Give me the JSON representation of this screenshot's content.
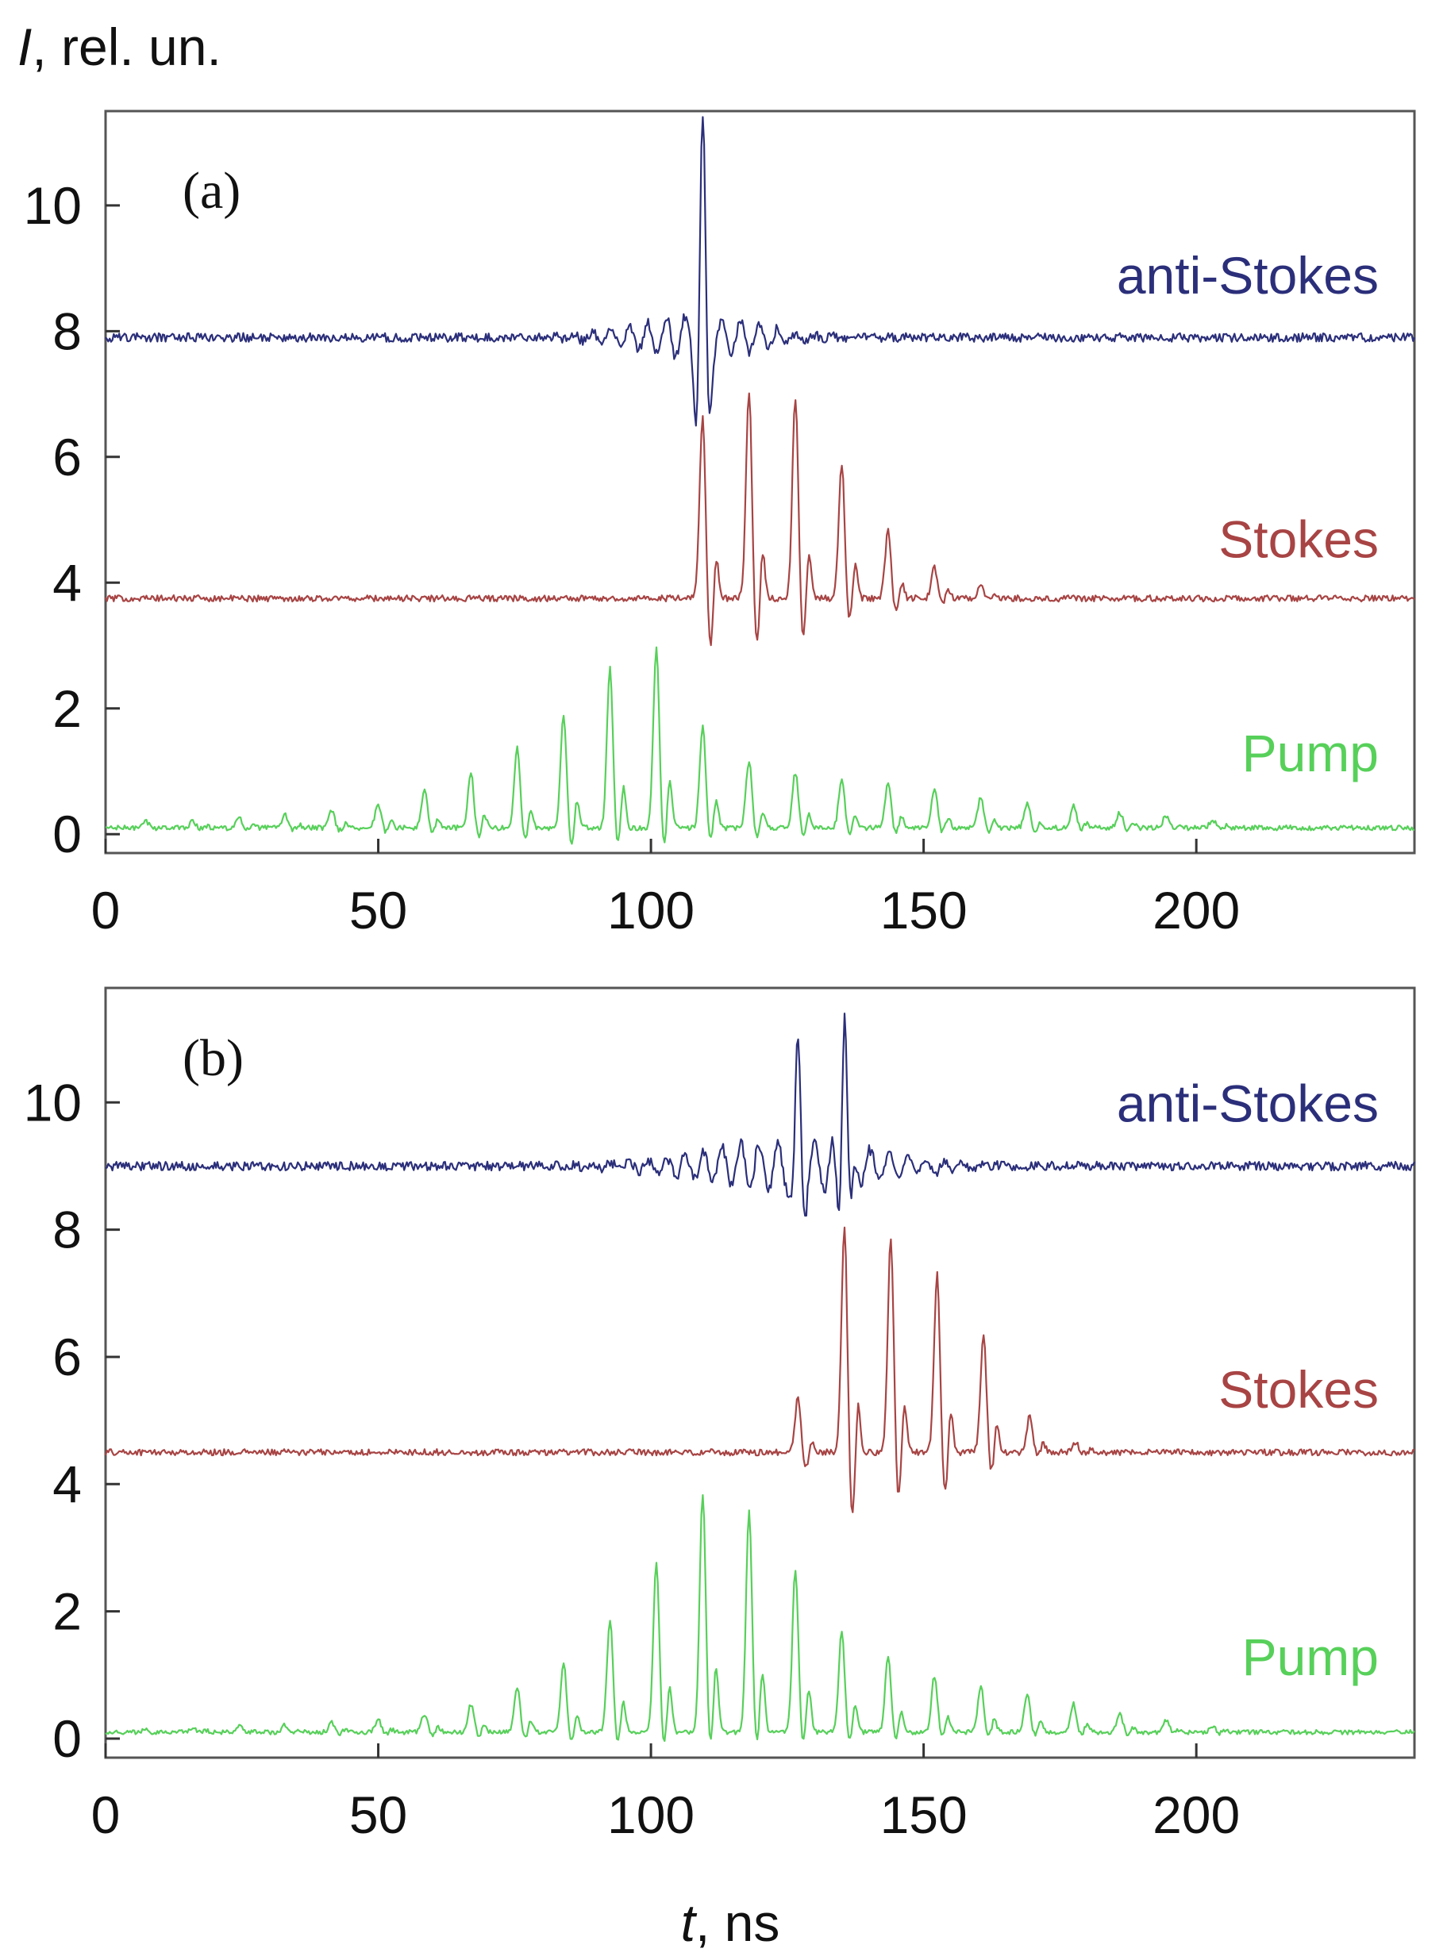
{
  "figure": {
    "ylabel_italic": "I",
    "ylabel_rest": ", rel. un.",
    "xlabel_italic": "t",
    "xlabel_rest": ", ns"
  },
  "chart_data": [
    {
      "type": "line",
      "panel_label": "(a)",
      "title": "",
      "xlabel": "t, ns",
      "ylabel": "I, rel. un.",
      "xlim": [
        0,
        240
      ],
      "ylim": [
        -0.3,
        11.5
      ],
      "x_ticks": [
        0,
        50,
        100,
        150,
        200
      ],
      "x_tick_labels": [
        "0",
        "50",
        "100",
        "150",
        "200"
      ],
      "y_ticks": [
        0,
        2,
        4,
        6,
        8,
        10
      ],
      "y_tick_labels": [
        "0",
        "2",
        "4",
        "6",
        "8",
        "10"
      ],
      "series": [
        {
          "name": "anti-Stokes",
          "color": "#2b2f7a",
          "kind": "oscillation",
          "baseline": 7.9,
          "noise": 0.07,
          "main_pulse": {
            "t": 109.5,
            "amplitude": 3.3,
            "width": 0.9,
            "period": 3.4
          },
          "envelope_center": 108,
          "envelope_width": 11,
          "envelope_amplitude": 0.4,
          "label_position": "right",
          "label_value": 8.6
        },
        {
          "name": "Stokes",
          "color": "#a84444",
          "kind": "pulses",
          "baseline": 3.75,
          "noise": 0.05,
          "pulses": [
            {
              "t": 109.5,
              "amplitude": 3.0,
              "undershoot": 0.9
            },
            {
              "t": 118.0,
              "amplitude": 3.4,
              "undershoot": 0.9
            },
            {
              "t": 126.5,
              "amplitude": 3.3,
              "undershoot": 0.8
            },
            {
              "t": 135.0,
              "amplitude": 2.2,
              "undershoot": 0.45
            },
            {
              "t": 143.5,
              "amplitude": 1.1,
              "undershoot": 0.25
            },
            {
              "t": 152.0,
              "amplitude": 0.5,
              "undershoot": 0.1
            },
            {
              "t": 160.5,
              "amplitude": 0.25,
              "undershoot": 0.05
            }
          ],
          "label_position": "right",
          "label_value": 4.4
        },
        {
          "name": "Pump",
          "color": "#57d05a",
          "kind": "pulses",
          "baseline": 0.1,
          "noise": 0.04,
          "pulses": [
            {
              "t": 7.5,
              "amplitude": 0.1,
              "undershoot": 0.02
            },
            {
              "t": 16.0,
              "amplitude": 0.12,
              "undershoot": 0.02
            },
            {
              "t": 24.5,
              "amplitude": 0.15,
              "undershoot": 0.03
            },
            {
              "t": 33.0,
              "amplitude": 0.2,
              "undershoot": 0.04
            },
            {
              "t": 41.5,
              "amplitude": 0.3,
              "undershoot": 0.06
            },
            {
              "t": 50.0,
              "amplitude": 0.4,
              "undershoot": 0.08
            },
            {
              "t": 58.5,
              "amplitude": 0.6,
              "undershoot": 0.12
            },
            {
              "t": 67.0,
              "amplitude": 0.9,
              "undershoot": 0.18
            },
            {
              "t": 75.5,
              "amplitude": 1.3,
              "undershoot": 0.26
            },
            {
              "t": 84.0,
              "amplitude": 1.85,
              "undershoot": 0.35
            },
            {
              "t": 92.5,
              "amplitude": 2.6,
              "undershoot": 0.4
            },
            {
              "t": 101.0,
              "amplitude": 2.9,
              "undershoot": 0.4
            },
            {
              "t": 109.5,
              "amplitude": 1.65,
              "undershoot": 0.25
            },
            {
              "t": 118.0,
              "amplitude": 1.1,
              "undershoot": 0.2
            },
            {
              "t": 126.5,
              "amplitude": 0.9,
              "undershoot": 0.15
            },
            {
              "t": 135.0,
              "amplitude": 0.8,
              "undershoot": 0.12
            },
            {
              "t": 143.5,
              "amplitude": 0.75,
              "undershoot": 0.12
            },
            {
              "t": 152.0,
              "amplitude": 0.65,
              "undershoot": 0.1
            },
            {
              "t": 160.5,
              "amplitude": 0.5,
              "undershoot": 0.08
            },
            {
              "t": 169.0,
              "amplitude": 0.4,
              "undershoot": 0.06
            },
            {
              "t": 177.5,
              "amplitude": 0.35,
              "undershoot": 0.05
            },
            {
              "t": 186.0,
              "amplitude": 0.25,
              "undershoot": 0.04
            },
            {
              "t": 194.5,
              "amplitude": 0.2,
              "undershoot": 0.03
            },
            {
              "t": 203.0,
              "amplitude": 0.12,
              "undershoot": 0.02
            }
          ],
          "label_position": "right",
          "label_value": 1.0
        }
      ]
    },
    {
      "type": "line",
      "panel_label": "(b)",
      "title": "",
      "xlabel": "t, ns",
      "ylabel": "I, rel. un.",
      "xlim": [
        0,
        240
      ],
      "ylim": [
        -0.3,
        11.8
      ],
      "x_ticks": [
        0,
        50,
        100,
        150,
        200
      ],
      "x_tick_labels": [
        "0",
        "50",
        "100",
        "150",
        "200"
      ],
      "y_ticks": [
        0,
        2,
        4,
        6,
        8,
        10
      ],
      "y_tick_labels": [
        "0",
        "2",
        "4",
        "6",
        "8",
        "10"
      ],
      "series": [
        {
          "name": "anti-Stokes",
          "color": "#2b2f7a",
          "kind": "oscillation",
          "baseline": 9.0,
          "noise": 0.07,
          "main_pulses": [
            {
              "t": 127.0,
              "amplitude": 1.7,
              "width": 0.8
            },
            {
              "t": 135.5,
              "amplitude": 2.6,
              "width": 0.8
            }
          ],
          "period": 3.4,
          "envelope_center": 125,
          "envelope_width": 16,
          "envelope_amplitude": 0.5,
          "label_position": "right",
          "label_value": 9.7
        },
        {
          "name": "Stokes",
          "color": "#a84444",
          "kind": "pulses",
          "baseline": 4.5,
          "noise": 0.05,
          "pulses": [
            {
              "t": 127.0,
              "amplitude": 0.9,
              "undershoot": 0.3
            },
            {
              "t": 135.5,
              "amplitude": 3.7,
              "undershoot": 1.2
            },
            {
              "t": 144.0,
              "amplitude": 3.5,
              "undershoot": 0.9
            },
            {
              "t": 152.5,
              "amplitude": 2.9,
              "undershoot": 0.8
            },
            {
              "t": 161.0,
              "amplitude": 1.9,
              "undershoot": 0.4
            },
            {
              "t": 169.5,
              "amplitude": 0.6,
              "undershoot": 0.1
            },
            {
              "t": 178.0,
              "amplitude": 0.15,
              "undershoot": 0.03
            }
          ],
          "label_position": "right",
          "label_value": 5.2
        },
        {
          "name": "Pump",
          "color": "#57d05a",
          "kind": "pulses",
          "baseline": 0.1,
          "noise": 0.035,
          "pulses": [
            {
              "t": 7.5,
              "amplitude": 0.06,
              "undershoot": 0.01
            },
            {
              "t": 16.0,
              "amplitude": 0.08,
              "undershoot": 0.01
            },
            {
              "t": 24.5,
              "amplitude": 0.1,
              "undershoot": 0.02
            },
            {
              "t": 33.0,
              "amplitude": 0.12,
              "undershoot": 0.02
            },
            {
              "t": 41.5,
              "amplitude": 0.15,
              "undershoot": 0.03
            },
            {
              "t": 50.0,
              "amplitude": 0.2,
              "undershoot": 0.04
            },
            {
              "t": 58.5,
              "amplitude": 0.3,
              "undershoot": 0.06
            },
            {
              "t": 67.0,
              "amplitude": 0.45,
              "undershoot": 0.08
            },
            {
              "t": 75.5,
              "amplitude": 0.7,
              "undershoot": 0.12
            },
            {
              "t": 84.0,
              "amplitude": 1.1,
              "undershoot": 0.18
            },
            {
              "t": 92.5,
              "amplitude": 1.8,
              "undershoot": 0.25
            },
            {
              "t": 101.0,
              "amplitude": 2.7,
              "undershoot": 0.3
            },
            {
              "t": 109.5,
              "amplitude": 3.8,
              "undershoot": 0.35
            },
            {
              "t": 118.0,
              "amplitude": 3.5,
              "undershoot": 0.35
            },
            {
              "t": 126.5,
              "amplitude": 2.6,
              "undershoot": 0.3
            },
            {
              "t": 135.0,
              "amplitude": 1.6,
              "undershoot": 0.2
            },
            {
              "t": 143.5,
              "amplitude": 1.2,
              "undershoot": 0.15
            },
            {
              "t": 152.0,
              "amplitude": 0.9,
              "undershoot": 0.12
            },
            {
              "t": 160.5,
              "amplitude": 0.75,
              "undershoot": 0.1
            },
            {
              "t": 169.0,
              "amplitude": 0.6,
              "undershoot": 0.08
            },
            {
              "t": 177.5,
              "amplitude": 0.45,
              "undershoot": 0.06
            },
            {
              "t": 186.0,
              "amplitude": 0.3,
              "undershoot": 0.05
            },
            {
              "t": 194.5,
              "amplitude": 0.2,
              "undershoot": 0.03
            },
            {
              "t": 203.0,
              "amplitude": 0.1,
              "undershoot": 0.02
            }
          ],
          "label_position": "right",
          "label_value": 1.0
        }
      ]
    }
  ]
}
